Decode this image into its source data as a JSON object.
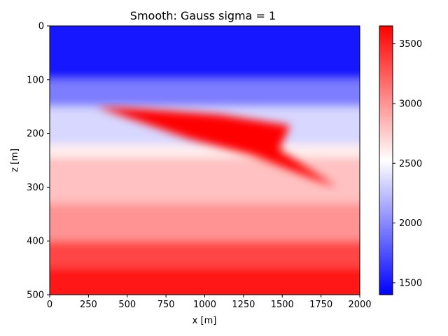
{
  "chart_data": {
    "type": "heatmap",
    "title": "Smooth: Gauss sigma = 1",
    "xlabel": "x [m]",
    "ylabel": "z [m]",
    "xlim": [
      0,
      2000
    ],
    "ylim": [
      500,
      0
    ],
    "x_ticks": [
      "0",
      "250",
      "500",
      "750",
      "1000",
      "1250",
      "1500",
      "1750",
      "2000"
    ],
    "y_ticks": [
      "0",
      "100",
      "200",
      "300",
      "400",
      "500"
    ],
    "colormap": "bwr",
    "colorbar": {
      "vmin": 1400,
      "vmax": 3650,
      "ticks": [
        "1500",
        "2000",
        "2500",
        "3000",
        "3500"
      ],
      "colors": [
        "#0000ff",
        "#ffffff",
        "#ff0000"
      ]
    },
    "layers": [
      {
        "z_top": 0,
        "z_bottom": 100,
        "velocity": 1500
      },
      {
        "z_top": 100,
        "z_bottom": 150,
        "velocity": 1950
      },
      {
        "z_top": 150,
        "z_bottom": 220,
        "velocity": 2350
      },
      {
        "z_top": 220,
        "z_bottom": 245,
        "velocity": 2600
      },
      {
        "z_top": 245,
        "z_bottom": 330,
        "velocity": 2800
      },
      {
        "z_top": 330,
        "z_bottom": 400,
        "velocity": 3000
      },
      {
        "z_top": 400,
        "z_bottom": 450,
        "velocity": 3350
      },
      {
        "z_top": 450,
        "z_bottom": 500,
        "velocity": 3550
      }
    ],
    "anomaly": {
      "velocity": 3650,
      "points": [
        [
          300,
          150
        ],
        [
          600,
          155
        ],
        [
          1100,
          165
        ],
        [
          1550,
          185
        ],
        [
          1480,
          230
        ],
        [
          1850,
          300
        ],
        [
          1750,
          290
        ],
        [
          1300,
          240
        ],
        [
          900,
          210
        ],
        [
          500,
          170
        ]
      ]
    }
  }
}
